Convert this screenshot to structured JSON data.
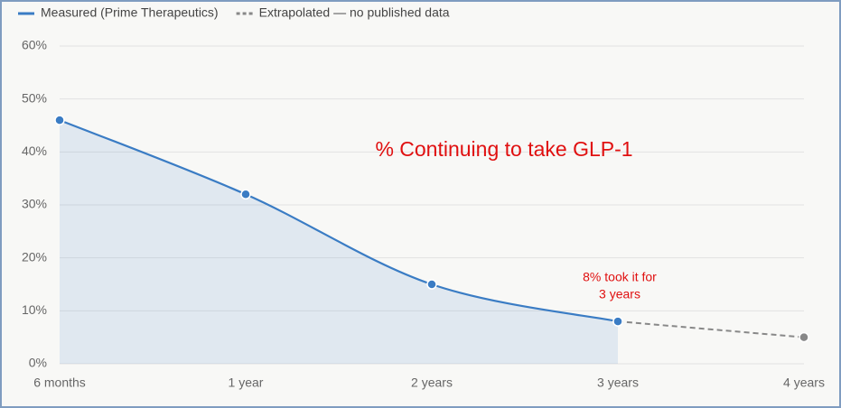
{
  "chart_data": {
    "type": "line",
    "title": "% Continuing to take GLP-1",
    "annotation": [
      "8% took it for",
      "3 years"
    ],
    "categories": [
      "6 months",
      "1 year",
      "2 years",
      "3 years",
      "4 years"
    ],
    "series": [
      {
        "name": "Measured (Prime Therapeutics)",
        "color": "#3a7cc4",
        "style": "solid",
        "area": true,
        "values": [
          46,
          32,
          15,
          8,
          null
        ]
      },
      {
        "name": "Extrapolated — no published data",
        "color": "#888888",
        "style": "dashed",
        "area": false,
        "values": [
          null,
          null,
          null,
          8,
          5
        ]
      }
    ],
    "ylim": [
      0,
      60
    ],
    "yticks": [
      {
        "value": 0,
        "label": "0%"
      },
      {
        "value": 10,
        "label": "10%"
      },
      {
        "value": 20,
        "label": "20%"
      },
      {
        "value": 30,
        "label": "30%"
      },
      {
        "value": 40,
        "label": "40%"
      },
      {
        "value": 50,
        "label": "50%"
      },
      {
        "value": 60,
        "label": "60%"
      }
    ],
    "grid": true
  }
}
